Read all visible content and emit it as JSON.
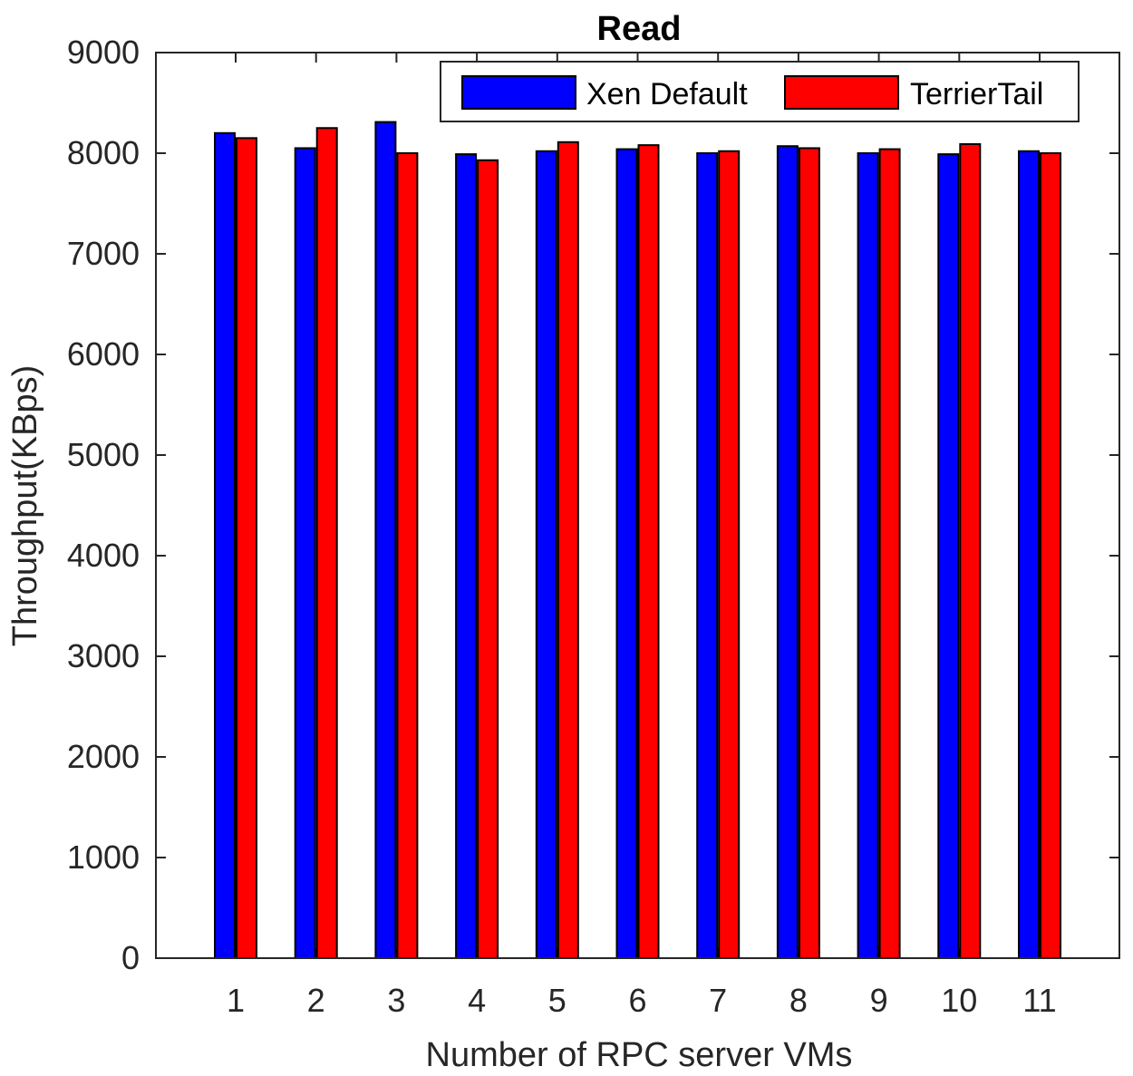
{
  "chart_data": {
    "type": "bar",
    "title": "Read",
    "xlabel": "Number of RPC server VMs",
    "ylabel": "Throughput(KBps)",
    "categories": [
      "1",
      "2",
      "3",
      "4",
      "5",
      "6",
      "7",
      "8",
      "9",
      "10",
      "11"
    ],
    "ylim": [
      0,
      9000
    ],
    "yticks": [
      "0",
      "1000",
      "2000",
      "3000",
      "4000",
      "5000",
      "6000",
      "7000",
      "8000",
      "9000"
    ],
    "grid": false,
    "legend_position": "top-right",
    "series": [
      {
        "name": "Xen Default",
        "color": "#0000ff",
        "values": [
          8200,
          8050,
          8310,
          7990,
          8020,
          8040,
          8000,
          8070,
          8000,
          7990,
          8020
        ]
      },
      {
        "name": "TerrierTail",
        "color": "#ff0000",
        "values": [
          8150,
          8250,
          8000,
          7930,
          8110,
          8080,
          8020,
          8050,
          8040,
          8090,
          8000
        ]
      }
    ]
  }
}
